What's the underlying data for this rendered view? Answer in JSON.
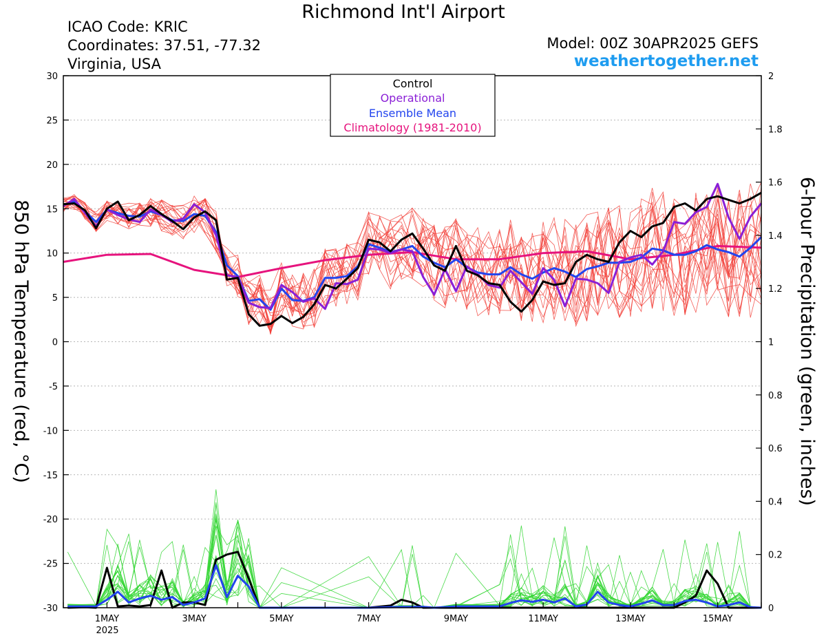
{
  "header": {
    "title": "Richmond Int'l Airport",
    "icao": "ICAO Code: KRIC",
    "coordinates": "Coordinates: 37.51, -77.32",
    "location": "Virginia, USA",
    "model": "Model: 00Z 30APR2025 GEFS",
    "website": "weathertogether.net"
  },
  "chart_data": {
    "type": "line",
    "left_axis": {
      "label": "850 hPa Temperature (red, °C)",
      "range": [
        -30,
        30
      ],
      "ticks": [
        30,
        25,
        20,
        15,
        10,
        5,
        0,
        -5,
        -10,
        -15,
        -20,
        -25,
        -30
      ]
    },
    "right_axis": {
      "label": "6-hour Precipitation (green, inches)",
      "range": [
        0,
        2
      ],
      "ticks": [
        2,
        1.8,
        1.6,
        1.4,
        1.2,
        1,
        0.8,
        0.6,
        0.4,
        0.2,
        0
      ]
    },
    "x_axis": {
      "range_days": [
        0,
        16
      ],
      "ticks": [
        {
          "label": "1MAY",
          "day": 1
        },
        {
          "label": "3MAY",
          "day": 3
        },
        {
          "label": "5MAY",
          "day": 5
        },
        {
          "label": "7MAY",
          "day": 7
        },
        {
          "label": "9MAY",
          "day": 9
        },
        {
          "label": "11MAY",
          "day": 11
        },
        {
          "label": "13MAY",
          "day": 13
        },
        {
          "label": "15MAY",
          "day": 15
        }
      ],
      "year_label": "2025"
    },
    "grid": true,
    "legend": {
      "placement": "top-center",
      "entries": [
        {
          "name": "Control",
          "color": "#000000"
        },
        {
          "name": "Operational",
          "color": "#8a1fd6"
        },
        {
          "name": "Ensemble Mean",
          "color": "#2244ee"
        },
        {
          "name": "Climatology (1981-2010)",
          "color": "#e6137d"
        }
      ]
    },
    "colors": {
      "members_temp": "#f2413a",
      "members_precip": "#33d633",
      "control": "#000000",
      "operational": "#8a1fd6",
      "mean": "#2244ee",
      "climatology": "#e6137d"
    },
    "series": [
      {
        "name": "Climatology (1981-2010)",
        "axis": "temperature",
        "x": [
          0,
          1,
          2,
          3,
          4,
          5,
          6,
          7,
          8,
          9,
          10,
          11,
          12,
          13,
          14,
          15,
          16
        ],
        "values": [
          9.0,
          9.8,
          9.9,
          8.1,
          7.3,
          8.3,
          9.2,
          9.8,
          10.1,
          9.3,
          9.3,
          10.0,
          10.2,
          9.3,
          9.8,
          10.8,
          10.6
        ]
      },
      {
        "name": "Control",
        "axis": "temperature",
        "x": [
          0,
          0.25,
          0.5,
          0.75,
          1,
          1.25,
          1.5,
          1.75,
          2,
          2.25,
          2.5,
          2.75,
          3,
          3.25,
          3.5,
          3.75,
          4,
          4.25,
          4.5,
          4.75,
          5,
          5.25,
          5.5,
          5.75,
          6,
          6.25,
          6.5,
          6.75,
          7,
          7.25,
          7.5,
          7.75,
          8,
          8.25,
          8.5,
          8.75,
          9,
          9.25,
          9.5,
          9.75,
          10,
          10.25,
          10.5,
          10.75,
          11,
          11.25,
          11.5,
          11.75,
          12,
          12.25,
          12.5,
          12.75,
          13,
          13.25,
          13.5,
          13.75,
          14,
          14.25,
          14.5,
          14.75,
          15,
          15.25,
          15.5,
          15.75,
          16
        ],
        "values": [
          15.5,
          15.6,
          14.8,
          12.8,
          15.0,
          15.8,
          13.7,
          14.3,
          15.3,
          14.4,
          13.6,
          12.7,
          14.0,
          14.7,
          13.7,
          7.0,
          7.2,
          3.1,
          1.8,
          2.0,
          2.9,
          2.1,
          2.8,
          4.2,
          6.4,
          6.0,
          7.1,
          8.3,
          11.5,
          11.2,
          10.2,
          11.5,
          12.2,
          10.5,
          8.6,
          8.0,
          10.8,
          8.0,
          7.5,
          6.6,
          6.4,
          4.5,
          3.4,
          4.7,
          6.8,
          6.4,
          6.6,
          9.0,
          9.8,
          9.3,
          9.0,
          11.2,
          12.5,
          11.8,
          13.0,
          13.4,
          15.2,
          15.6,
          14.8,
          16.1,
          16.4,
          16.0,
          15.6,
          16.1,
          16.8
        ]
      },
      {
        "name": "Operational",
        "axis": "temperature",
        "x": [
          0,
          0.25,
          0.5,
          0.75,
          1,
          1.25,
          1.5,
          1.75,
          2,
          2.25,
          2.5,
          2.75,
          3,
          3.25,
          3.5,
          3.75,
          4,
          4.25,
          4.5,
          4.75,
          5,
          5.25,
          5.5,
          5.75,
          6,
          6.25,
          6.5,
          6.75,
          7,
          7.25,
          7.5,
          7.75,
          8,
          8.25,
          8.5,
          8.75,
          9,
          9.25,
          9.5,
          9.75,
          10,
          10.25,
          10.5,
          10.75,
          11,
          11.25,
          11.5,
          11.75,
          12,
          12.25,
          12.5,
          12.75,
          13,
          13.25,
          13.5,
          13.75,
          14,
          14.25,
          14.5,
          14.75,
          15,
          15.25,
          15.5,
          15.75,
          16
        ],
        "values": [
          15.3,
          16.1,
          14.5,
          13.0,
          14.9,
          14.3,
          13.8,
          13.5,
          14.9,
          14.3,
          13.5,
          13.9,
          15.5,
          14.6,
          12.0,
          7.5,
          7.3,
          4.4,
          3.9,
          3.8,
          6.4,
          5.6,
          4.5,
          4.9,
          3.7,
          6.6,
          6.5,
          7.0,
          10.5,
          10.4,
          10.0,
          10.4,
          10.2,
          7.3,
          5.3,
          8.2,
          5.7,
          8.5,
          7.6,
          6.4,
          6.1,
          8.0,
          6.7,
          5.4,
          8.3,
          7.0,
          4.0,
          7.1,
          7.0,
          6.6,
          5.5,
          9.0,
          9.5,
          9.8,
          8.7,
          10.2,
          13.5,
          13.3,
          14.6,
          15.2,
          17.8,
          14.0,
          11.6,
          14.1,
          15.6
        ]
      },
      {
        "name": "Ensemble Mean",
        "axis": "temperature",
        "x": [
          0,
          0.25,
          0.5,
          0.75,
          1,
          1.25,
          1.5,
          1.75,
          2,
          2.25,
          2.5,
          2.75,
          3,
          3.25,
          3.5,
          3.75,
          4,
          4.25,
          4.5,
          4.75,
          5,
          5.25,
          5.5,
          5.75,
          6,
          6.25,
          6.5,
          6.75,
          7,
          7.25,
          7.5,
          7.75,
          8,
          8.25,
          8.5,
          8.75,
          9,
          9.25,
          9.5,
          9.75,
          10,
          10.25,
          10.5,
          10.75,
          11,
          11.25,
          11.5,
          11.75,
          12,
          12.25,
          12.5,
          12.75,
          13,
          13.25,
          13.5,
          13.75,
          14,
          14.25,
          14.5,
          14.75,
          15,
          15.25,
          15.5,
          15.75,
          16
        ],
        "values": [
          15.4,
          15.8,
          14.7,
          13.5,
          14.9,
          14.5,
          14.2,
          14.1,
          14.7,
          14.3,
          13.7,
          13.6,
          14.4,
          14.2,
          12.4,
          8.6,
          7.4,
          4.6,
          4.8,
          3.6,
          6.0,
          4.7,
          4.6,
          5.0,
          7.2,
          7.2,
          7.4,
          8.5,
          11.0,
          10.6,
          10.1,
          10.4,
          10.8,
          9.6,
          8.9,
          8.4,
          9.3,
          8.4,
          7.8,
          7.6,
          7.6,
          8.4,
          7.6,
          7.1,
          7.8,
          8.3,
          7.9,
          7.3,
          8.2,
          8.5,
          8.9,
          8.9,
          9.0,
          9.5,
          10.5,
          10.3,
          9.8,
          9.8,
          10.2,
          10.9,
          10.4,
          10.1,
          9.6,
          10.6,
          11.8
        ]
      },
      {
        "name": "Control",
        "axis": "precipitation",
        "x": [
          0.1,
          0.5,
          0.75,
          1,
          1.25,
          1.5,
          1.75,
          2,
          2.25,
          2.5,
          2.75,
          3,
          3.25,
          3.5,
          3.75,
          4,
          4.25,
          4.5,
          5,
          7,
          7.5,
          7.75,
          8,
          8.25,
          8.5,
          14,
          14.25,
          14.5,
          14.75,
          15,
          15.25,
          16
        ],
        "values": [
          0,
          0.002,
          0,
          0.15,
          0.005,
          0.008,
          0.005,
          0.01,
          0.14,
          0.0,
          0.02,
          0.02,
          0.01,
          0.18,
          0.2,
          0.21,
          0.11,
          0.0,
          0,
          0,
          0.008,
          0.03,
          0.02,
          0.0,
          0,
          0,
          0.02,
          0.045,
          0.14,
          0.09,
          0.0,
          0
        ]
      },
      {
        "name": "Ensemble Mean",
        "axis": "precipitation",
        "x": [
          0.1,
          0.75,
          1,
          1.25,
          1.5,
          1.75,
          2,
          2.25,
          2.5,
          2.75,
          3,
          3.25,
          3.5,
          3.75,
          4,
          4.25,
          4.5,
          5,
          7,
          7.75,
          8,
          8.25,
          8.5,
          9,
          10,
          10.25,
          10.5,
          10.75,
          11,
          11.25,
          11.5,
          11.75,
          12,
          12.25,
          12.5,
          12.75,
          13,
          13.25,
          13.5,
          13.75,
          14,
          14.25,
          14.5,
          14.75,
          15,
          15.25,
          15.5,
          15.75,
          16
        ],
        "values": [
          0.005,
          0.005,
          0.03,
          0.06,
          0.02,
          0.035,
          0.045,
          0.03,
          0.04,
          0.01,
          0.02,
          0.035,
          0.16,
          0.04,
          0.12,
          0.08,
          0.0,
          0.0,
          0,
          0.003,
          0.003,
          0.003,
          0.0,
          0.005,
          0.005,
          0.018,
          0.028,
          0.022,
          0.03,
          0.02,
          0.035,
          0.005,
          0.012,
          0.06,
          0.02,
          0.01,
          0.005,
          0.015,
          0.028,
          0.01,
          0.01,
          0.025,
          0.03,
          0.02,
          0.005,
          0.01,
          0.02,
          0.002,
          0.0
        ]
      }
    ]
  }
}
